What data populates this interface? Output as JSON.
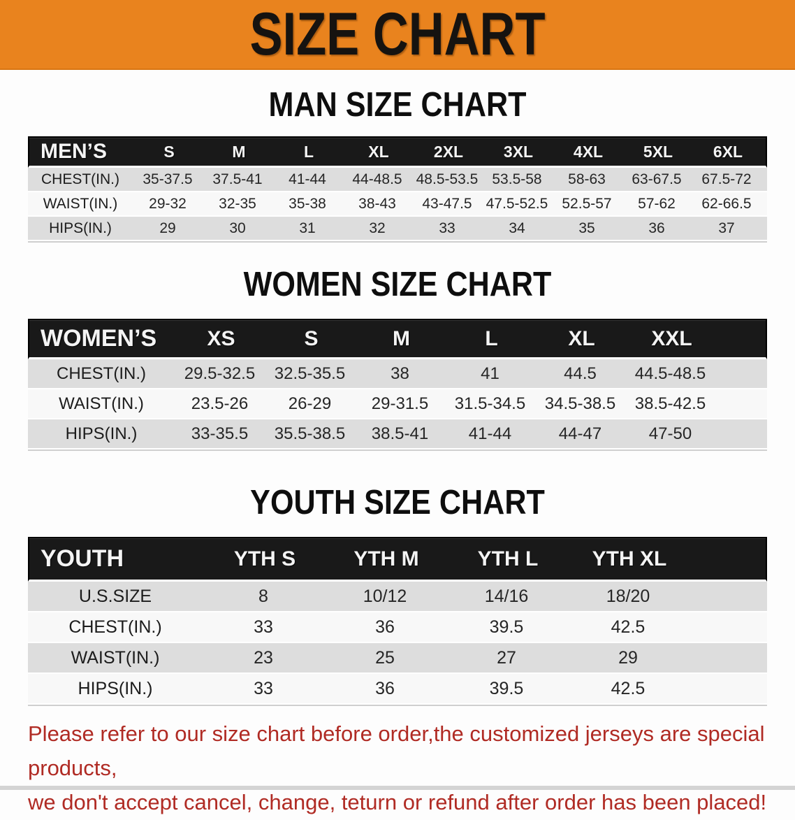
{
  "banner": {
    "title": "SIZE CHART",
    "bg_color": "#E9831E",
    "text_color": "#161310"
  },
  "tables": [
    {
      "id": "men",
      "heading": "MAN SIZE CHART",
      "header_label": "MEN’S",
      "columns": [
        "S",
        "M",
        "L",
        "XL",
        "2XL",
        "3XL",
        "4XL",
        "5XL",
        "6XL"
      ],
      "rows": [
        {
          "label": "CHEST(IN.)",
          "values": [
            "35-37.5",
            "37.5-41",
            "41-44",
            "44-48.5",
            "48.5-53.5",
            "53.5-58",
            "58-63",
            "63-67.5",
            "67.5-72"
          ]
        },
        {
          "label": "WAIST(IN.)",
          "values": [
            "29-32",
            "32-35",
            "35-38",
            "38-43",
            "43-47.5",
            "47.5-52.5",
            "52.5-57",
            "57-62",
            "62-66.5"
          ]
        },
        {
          "label": "HIPS(IN.)",
          "values": [
            "29",
            "30",
            "31",
            "32",
            "33",
            "34",
            "35",
            "36",
            "37"
          ]
        }
      ]
    },
    {
      "id": "women",
      "heading": "WOMEN SIZE CHART",
      "header_label": "WOMEN’S",
      "columns": [
        "XS",
        "S",
        "M",
        "L",
        "XL",
        "XXL"
      ],
      "rows": [
        {
          "label": "CHEST(IN.)",
          "values": [
            "29.5-32.5",
            "32.5-35.5",
            "38",
            "41",
            "44.5",
            "44.5-48.5"
          ]
        },
        {
          "label": "WAIST(IN.)",
          "values": [
            "23.5-26",
            "26-29",
            "29-31.5",
            "31.5-34.5",
            "34.5-38.5",
            "38.5-42.5"
          ]
        },
        {
          "label": "HIPS(IN.)",
          "values": [
            "33-35.5",
            "35.5-38.5",
            "38.5-41",
            "41-44",
            "44-47",
            "47-50"
          ]
        }
      ]
    },
    {
      "id": "youth",
      "heading": "YOUTH SIZE CHART",
      "header_label": "YOUTH",
      "columns": [
        "YTH S",
        "YTH M",
        "YTH L",
        "YTH XL"
      ],
      "rows": [
        {
          "label": "U.S.SIZE",
          "values": [
            "8",
            "10/12",
            "14/16",
            "18/20"
          ]
        },
        {
          "label": "CHEST(IN.)",
          "values": [
            "33",
            "36",
            "39.5",
            "42.5"
          ]
        },
        {
          "label": "WAIST(IN.)",
          "values": [
            "23",
            "25",
            "27",
            "29"
          ]
        },
        {
          "label": "HIPS(IN.)",
          "values": [
            "33",
            "36",
            "39.5",
            "42.5"
          ]
        }
      ]
    }
  ],
  "disclaimer": {
    "line1": "Please refer to our size chart before order,the customized jerseys are special products,",
    "line2": "we don't accept cancel, change, teturn or refund after order has been placed!",
    "color": "#B02B24"
  },
  "colors": {
    "header_bar": "#191919",
    "row_shaded": "#dddddd",
    "row_plain": "#f8f8f8"
  }
}
